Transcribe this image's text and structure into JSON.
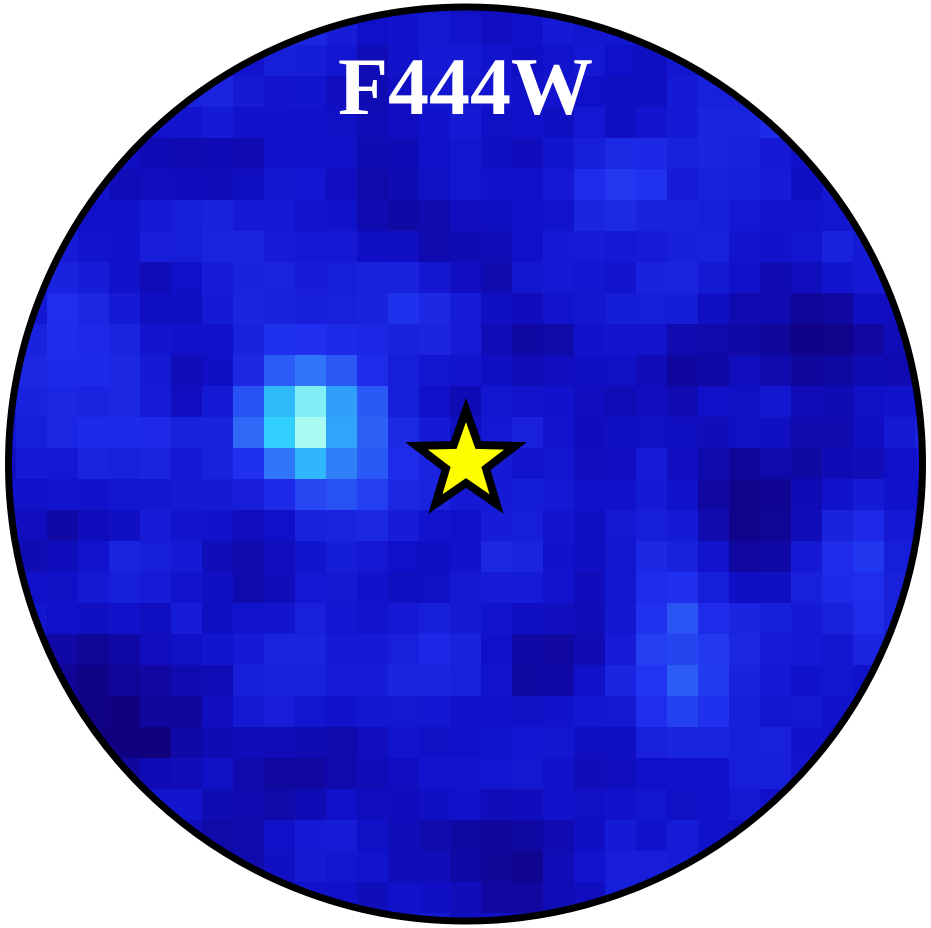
{
  "image": {
    "band_label": "F444W",
    "colors": {
      "background": "#ffffff",
      "border": "#000000",
      "label": "#ffffff",
      "marker_fill": "#ffff00",
      "marker_stroke": "#000000"
    },
    "colormap": [
      [
        0.0,
        "#10007a"
      ],
      [
        0.25,
        "#1010c8"
      ],
      [
        0.5,
        "#2030ee"
      ],
      [
        0.7,
        "#3070f8"
      ],
      [
        0.85,
        "#30b0fb"
      ],
      [
        0.93,
        "#30d8fc"
      ],
      [
        1.0,
        "#b6fff0"
      ]
    ],
    "marker": {
      "name": "star-marker",
      "shape": "five-point-star"
    }
  }
}
